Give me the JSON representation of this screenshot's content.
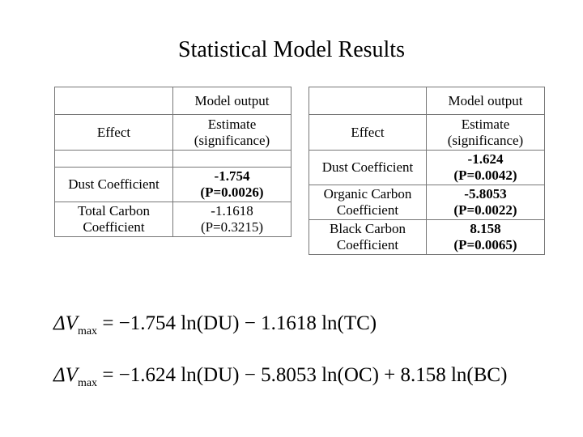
{
  "title": "Statistical Model Results",
  "tables": [
    {
      "header": "Model output",
      "effect_label": "Effect",
      "estimate_label": "Estimate (significance)",
      "rows": [
        {
          "label": "Dust Coefficient",
          "estimate": "-1.754",
          "significance": "(P=0.0026)",
          "bold": true
        },
        {
          "label": "Total Carbon Coefficient",
          "estimate": "-1.1618",
          "significance": "(P=0.3215)",
          "bold": false
        }
      ]
    },
    {
      "header": "Model output",
      "effect_label": "Effect",
      "estimate_label": "Estimate (significance)",
      "rows": [
        {
          "label": "Dust Coefficient",
          "estimate": "-1.624",
          "significance": "(P=0.0042)",
          "bold": true
        },
        {
          "label": "Organic Carbon Coefficient",
          "estimate": "-5.8053",
          "significance": "(P=0.0022)",
          "bold": true
        },
        {
          "label": "Black Carbon Coefficient",
          "estimate": "8.158",
          "significance": "(P=0.0065)",
          "bold": true
        }
      ]
    }
  ],
  "equations": [
    {
      "lhs": "ΔV",
      "sub": "max",
      "rhs": "= −1.754 ln(DU) − 1.1618 ln(TC)"
    },
    {
      "lhs": "ΔV",
      "sub": "max",
      "rhs": "= −1.624 ln(DU) − 5.8053 ln(OC) + 8.158 ln(BC)"
    }
  ]
}
